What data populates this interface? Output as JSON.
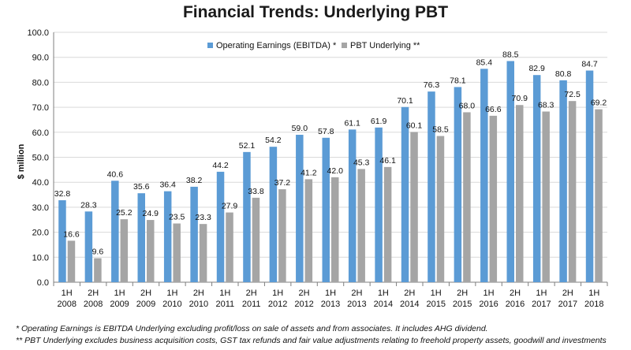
{
  "title": "Financial Trends: Underlying PBT",
  "chart_data": {
    "type": "bar",
    "title": "Financial Trends: Underlying PBT",
    "ylabel": "$ million",
    "xlabel": "",
    "ylim": [
      0,
      100
    ],
    "yticks": [
      "0.0",
      "10.0",
      "20.0",
      "30.0",
      "40.0",
      "50.0",
      "60.0",
      "70.0",
      "80.0",
      "90.0",
      "100.0"
    ],
    "grid": true,
    "legend_position": "top-center",
    "categories": [
      [
        "1H",
        "2008"
      ],
      [
        "2H",
        "2008"
      ],
      [
        "1H",
        "2009"
      ],
      [
        "2H",
        "2009"
      ],
      [
        "1H",
        "2010"
      ],
      [
        "2H",
        "2010"
      ],
      [
        "1H",
        "2011"
      ],
      [
        "2H",
        "2011"
      ],
      [
        "1H",
        "2012"
      ],
      [
        "2H",
        "2012"
      ],
      [
        "1H",
        "2013"
      ],
      [
        "2H",
        "2013"
      ],
      [
        "1H",
        "2014"
      ],
      [
        "2H",
        "2014"
      ],
      [
        "1H",
        "2015"
      ],
      [
        "2H",
        "2015"
      ],
      [
        "1H",
        "2016"
      ],
      [
        "2H",
        "2016"
      ],
      [
        "1H",
        "2017"
      ],
      [
        "2H",
        "2017"
      ],
      [
        "1H",
        "2018"
      ]
    ],
    "series": [
      {
        "name": "Operating Earnings (EBITDA) *",
        "color": "#5b9bd5",
        "values": [
          32.8,
          28.3,
          40.6,
          35.6,
          36.4,
          38.2,
          44.2,
          52.1,
          54.2,
          59.0,
          57.8,
          61.1,
          61.9,
          70.1,
          76.3,
          78.1,
          85.4,
          88.5,
          82.9,
          80.8,
          84.7
        ],
        "labels": [
          "32.8",
          "28.3",
          "40.6",
          "35.6",
          "36.4",
          "38.2",
          "44.2",
          "52.1",
          "54.2",
          "59.0",
          "57.8",
          "61.1",
          "61.9",
          "70.1",
          "76.3",
          "78.1",
          "85.4",
          "88.5",
          "82.9",
          "80.8",
          "84.7"
        ]
      },
      {
        "name": "PBT Underlying **",
        "color": "#a5a5a5",
        "values": [
          16.6,
          9.6,
          25.2,
          24.9,
          23.5,
          23.3,
          27.9,
          33.8,
          37.2,
          41.2,
          42.0,
          45.3,
          46.1,
          60.1,
          58.5,
          68.0,
          66.6,
          70.9,
          68.3,
          72.5,
          69.2
        ],
        "labels": [
          "16.6",
          "9.6",
          "25.2",
          "24.9",
          "23.5",
          "23.3",
          "27.9",
          "33.8",
          "37.2",
          "41.2",
          "42.0",
          "45.3",
          "46.1",
          "60.1",
          "58.5",
          "68.0",
          "66.6",
          "70.9",
          "68.3",
          "72.5",
          "69.2"
        ]
      }
    ]
  },
  "footnotes": [
    "* Operating Earnings is EBITDA Underlying excluding profit/loss on sale of assets and from associates. It includes  AHG dividend.",
    "** PBT Underlying excludes business acquisition costs, GST tax refunds and fair value adjustments relating to freehold property assets, goodwill and investments"
  ]
}
